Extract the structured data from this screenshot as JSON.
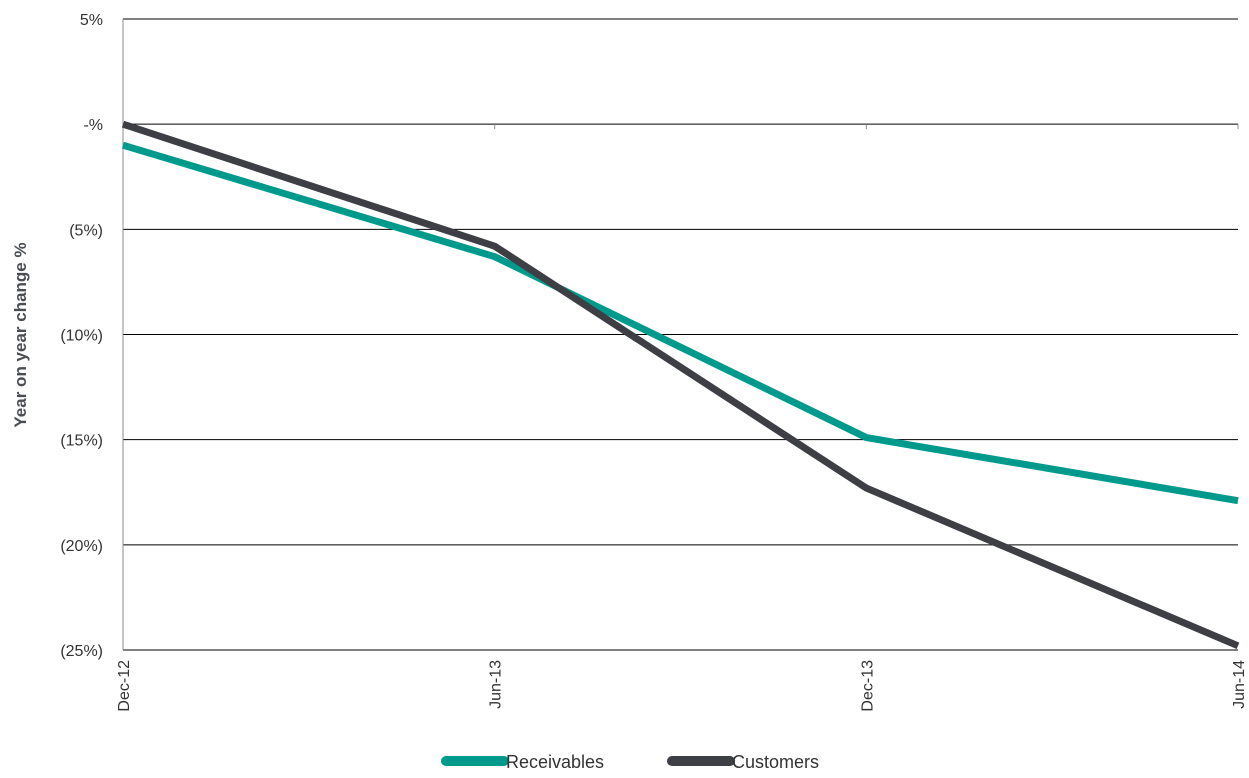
{
  "chart_data": {
    "type": "line",
    "categories": [
      "Dec-12",
      "Jun-13",
      "Dec-13",
      "Jun-14"
    ],
    "series": [
      {
        "name": "Receivables",
        "values": [
          -1,
          -6.3,
          -14.9,
          -17.9
        ],
        "color": "#009a8c"
      },
      {
        "name": "Customers",
        "values": [
          0,
          -5.8,
          -17.3,
          -24.8
        ],
        "color": "#3d3f45"
      }
    ],
    "ylabel": "Year on year change %",
    "xlabel": "",
    "ylim": [
      -25,
      5
    ],
    "yticks": [
      5,
      0,
      -5,
      -10,
      -15,
      -20,
      -25
    ],
    "ytick_labels": [
      "5%",
      "-%",
      "(5%)",
      "(10%)",
      "(15%)",
      "(20%)",
      "(25%)"
    ],
    "grid": true,
    "legend": {
      "position": "bottom",
      "items": [
        "Receivables",
        "Customers"
      ]
    }
  }
}
